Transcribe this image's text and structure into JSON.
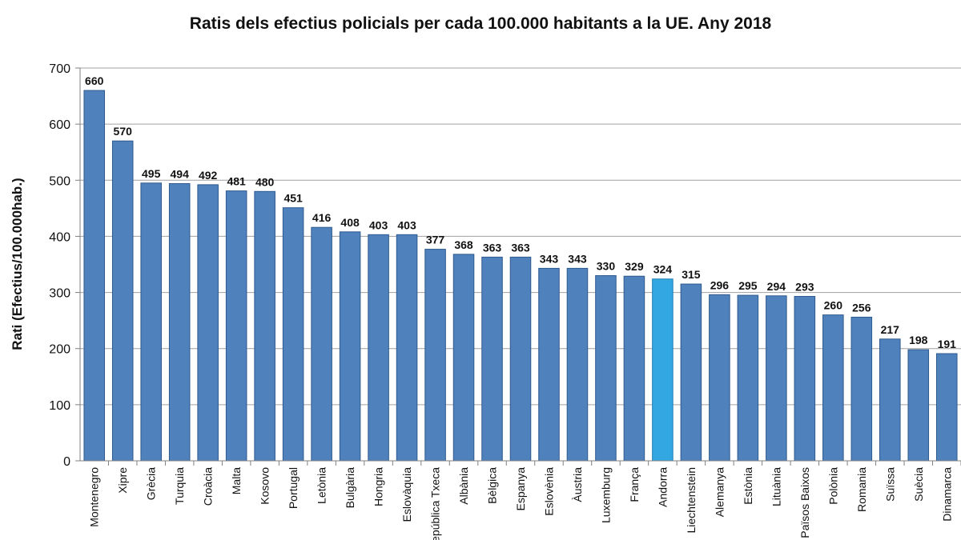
{
  "chart_data": {
    "type": "bar",
    "title": "Ratis dels efectius policials per cada 100.000 habitants a la UE. Any 2018",
    "xlabel": "",
    "ylabel": "Rati (Efectius/100.000hab.)",
    "ylim": [
      0,
      700
    ],
    "yticks": [
      "0",
      "100",
      "200",
      "300",
      "400",
      "500",
      "600",
      "700"
    ],
    "grid": true,
    "categories": [
      "Montenegro",
      "Xipre",
      "Grècia",
      "Turquia",
      "Croàcia",
      "Malta",
      "Kosovo",
      "Portugal",
      "Letònia",
      "Bulgària",
      "Hongria",
      "Eslovàquia",
      "República Txeca",
      "Albània",
      "Bèlgica",
      "Espanya",
      "Eslovènia",
      "Àustria",
      "Luxemburg",
      "França",
      "Andorra",
      "Liechtenstein",
      "Alemanya",
      "Estònia",
      "Lituània",
      "Països Baixos",
      "Polònia",
      "Romania",
      "Suïssa",
      "Suècia",
      "Dinamarca"
    ],
    "values": [
      660,
      570,
      495,
      494,
      492,
      481,
      480,
      451,
      416,
      408,
      403,
      403,
      377,
      368,
      363,
      363,
      343,
      343,
      330,
      329,
      324,
      315,
      296,
      295,
      294,
      293,
      260,
      256,
      217,
      198,
      191
    ],
    "highlight_category": "Andorra",
    "colors": {
      "bar": "#4f81bd",
      "bar_edge": "#2e5a8e",
      "highlight": "#33a7e2",
      "highlight_edge": "#1f7fb3",
      "grid": "#a0a0a0",
      "axis": "#808080"
    }
  }
}
